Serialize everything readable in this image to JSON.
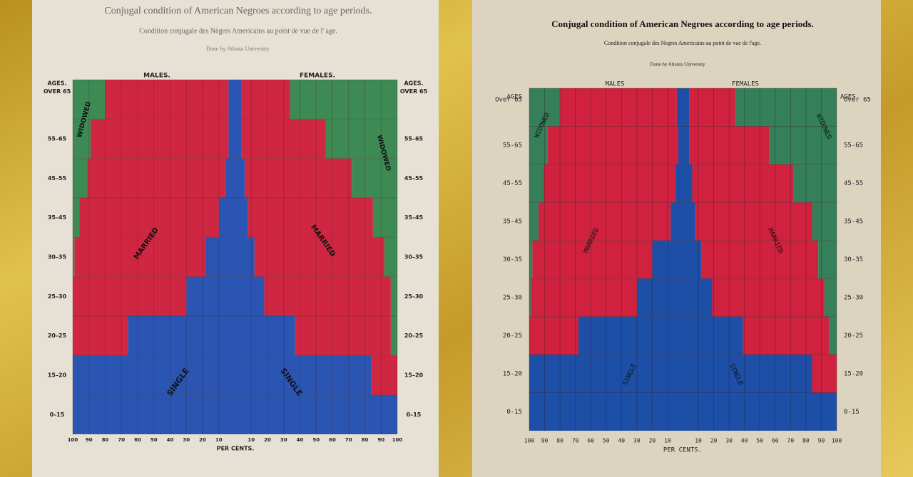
{
  "chart_data": [
    {
      "type": "pyramid",
      "title": "Conjugal condition of American Negroes according to age periods.",
      "subtitle": "Condition conjugale des Nègres Americains au point de vue de l' age.",
      "credit": "Done by Atlanta University.",
      "left_title": "MALES.",
      "right_title": "FEMALES.",
      "ages_label": "AGES.",
      "categories": [
        "0–15",
        "15–20",
        "20–25",
        "25–30",
        "30–35",
        "35–45",
        "45–55",
        "55–65",
        "OVER 65"
      ],
      "xlabel": "PER CENTS.",
      "xlim": [
        0,
        100
      ],
      "xticks": [
        10,
        20,
        30,
        40,
        50,
        60,
        70,
        80,
        90,
        100
      ],
      "series": [
        {
          "name": "SINGLE",
          "side": "left",
          "color": "#2b55b2",
          "values": [
            100,
            100,
            66,
            30,
            18,
            10,
            6,
            4,
            4
          ]
        },
        {
          "name": "MARRIED",
          "side": "left",
          "color": "#cf2741",
          "values": [
            0,
            0,
            34,
            70,
            81,
            86,
            85,
            85,
            76
          ]
        },
        {
          "name": "WIDOWED",
          "side": "left",
          "color": "#3e8a55",
          "values": [
            0,
            0,
            0,
            0,
            1,
            4,
            9,
            11,
            20
          ]
        },
        {
          "name": "SINGLE",
          "side": "right",
          "color": "#2b55b2",
          "values": [
            100,
            84,
            37,
            18,
            12,
            8,
            6,
            4,
            4
          ]
        },
        {
          "name": "MARRIED",
          "side": "right",
          "color": "#cf2741",
          "values": [
            0,
            16,
            59,
            78,
            80,
            77,
            66,
            52,
            30
          ]
        },
        {
          "name": "WIDOWED",
          "side": "right",
          "color": "#3e8a55",
          "values": [
            0,
            0,
            4,
            4,
            8,
            15,
            28,
            44,
            66
          ]
        }
      ]
    },
    {
      "type": "pyramid",
      "title": "Conjugal condition of American Negroes according to age periods.",
      "subtitle": "Condition conjugale des Negres Americains au point de vue de l'age.",
      "credit": "Done by Atlanta University",
      "left_title": "MALES",
      "right_title": "FEMALES",
      "ages_label": "AGES",
      "categories": [
        "0-15",
        "15-20",
        "20-25",
        "25-30",
        "30-35",
        "35-45",
        "45-55",
        "55-65",
        "Over 65"
      ],
      "xlabel": "PER CENTS.",
      "xlim": [
        0,
        100
      ],
      "xticks": [
        10,
        20,
        30,
        40,
        50,
        60,
        70,
        80,
        90,
        100
      ],
      "series": [
        {
          "name": "SINGLE",
          "side": "left",
          "color": "#1d4fa6",
          "values": [
            100,
            100,
            68,
            30,
            20,
            8,
            5,
            3,
            4
          ]
        },
        {
          "name": "MARRIED",
          "side": "left",
          "color": "#d0213f",
          "values": [
            0,
            0,
            32,
            69,
            78,
            86,
            86,
            85,
            76
          ]
        },
        {
          "name": "WIDOWED",
          "side": "left",
          "color": "#35805a",
          "values": [
            0,
            0,
            0,
            1,
            2,
            6,
            9,
            12,
            20
          ]
        },
        {
          "name": "SINGLE",
          "side": "right",
          "color": "#1d4fa6",
          "values": [
            100,
            84,
            39,
            19,
            12,
            8,
            6,
            4,
            4
          ]
        },
        {
          "name": "MARRIED",
          "side": "right",
          "color": "#d0213f",
          "values": [
            0,
            16,
            56,
            73,
            76,
            76,
            66,
            52,
            30
          ]
        },
        {
          "name": "WIDOWED",
          "side": "right",
          "color": "#35805a",
          "values": [
            0,
            0,
            5,
            8,
            12,
            16,
            28,
            44,
            66
          ]
        }
      ]
    }
  ]
}
